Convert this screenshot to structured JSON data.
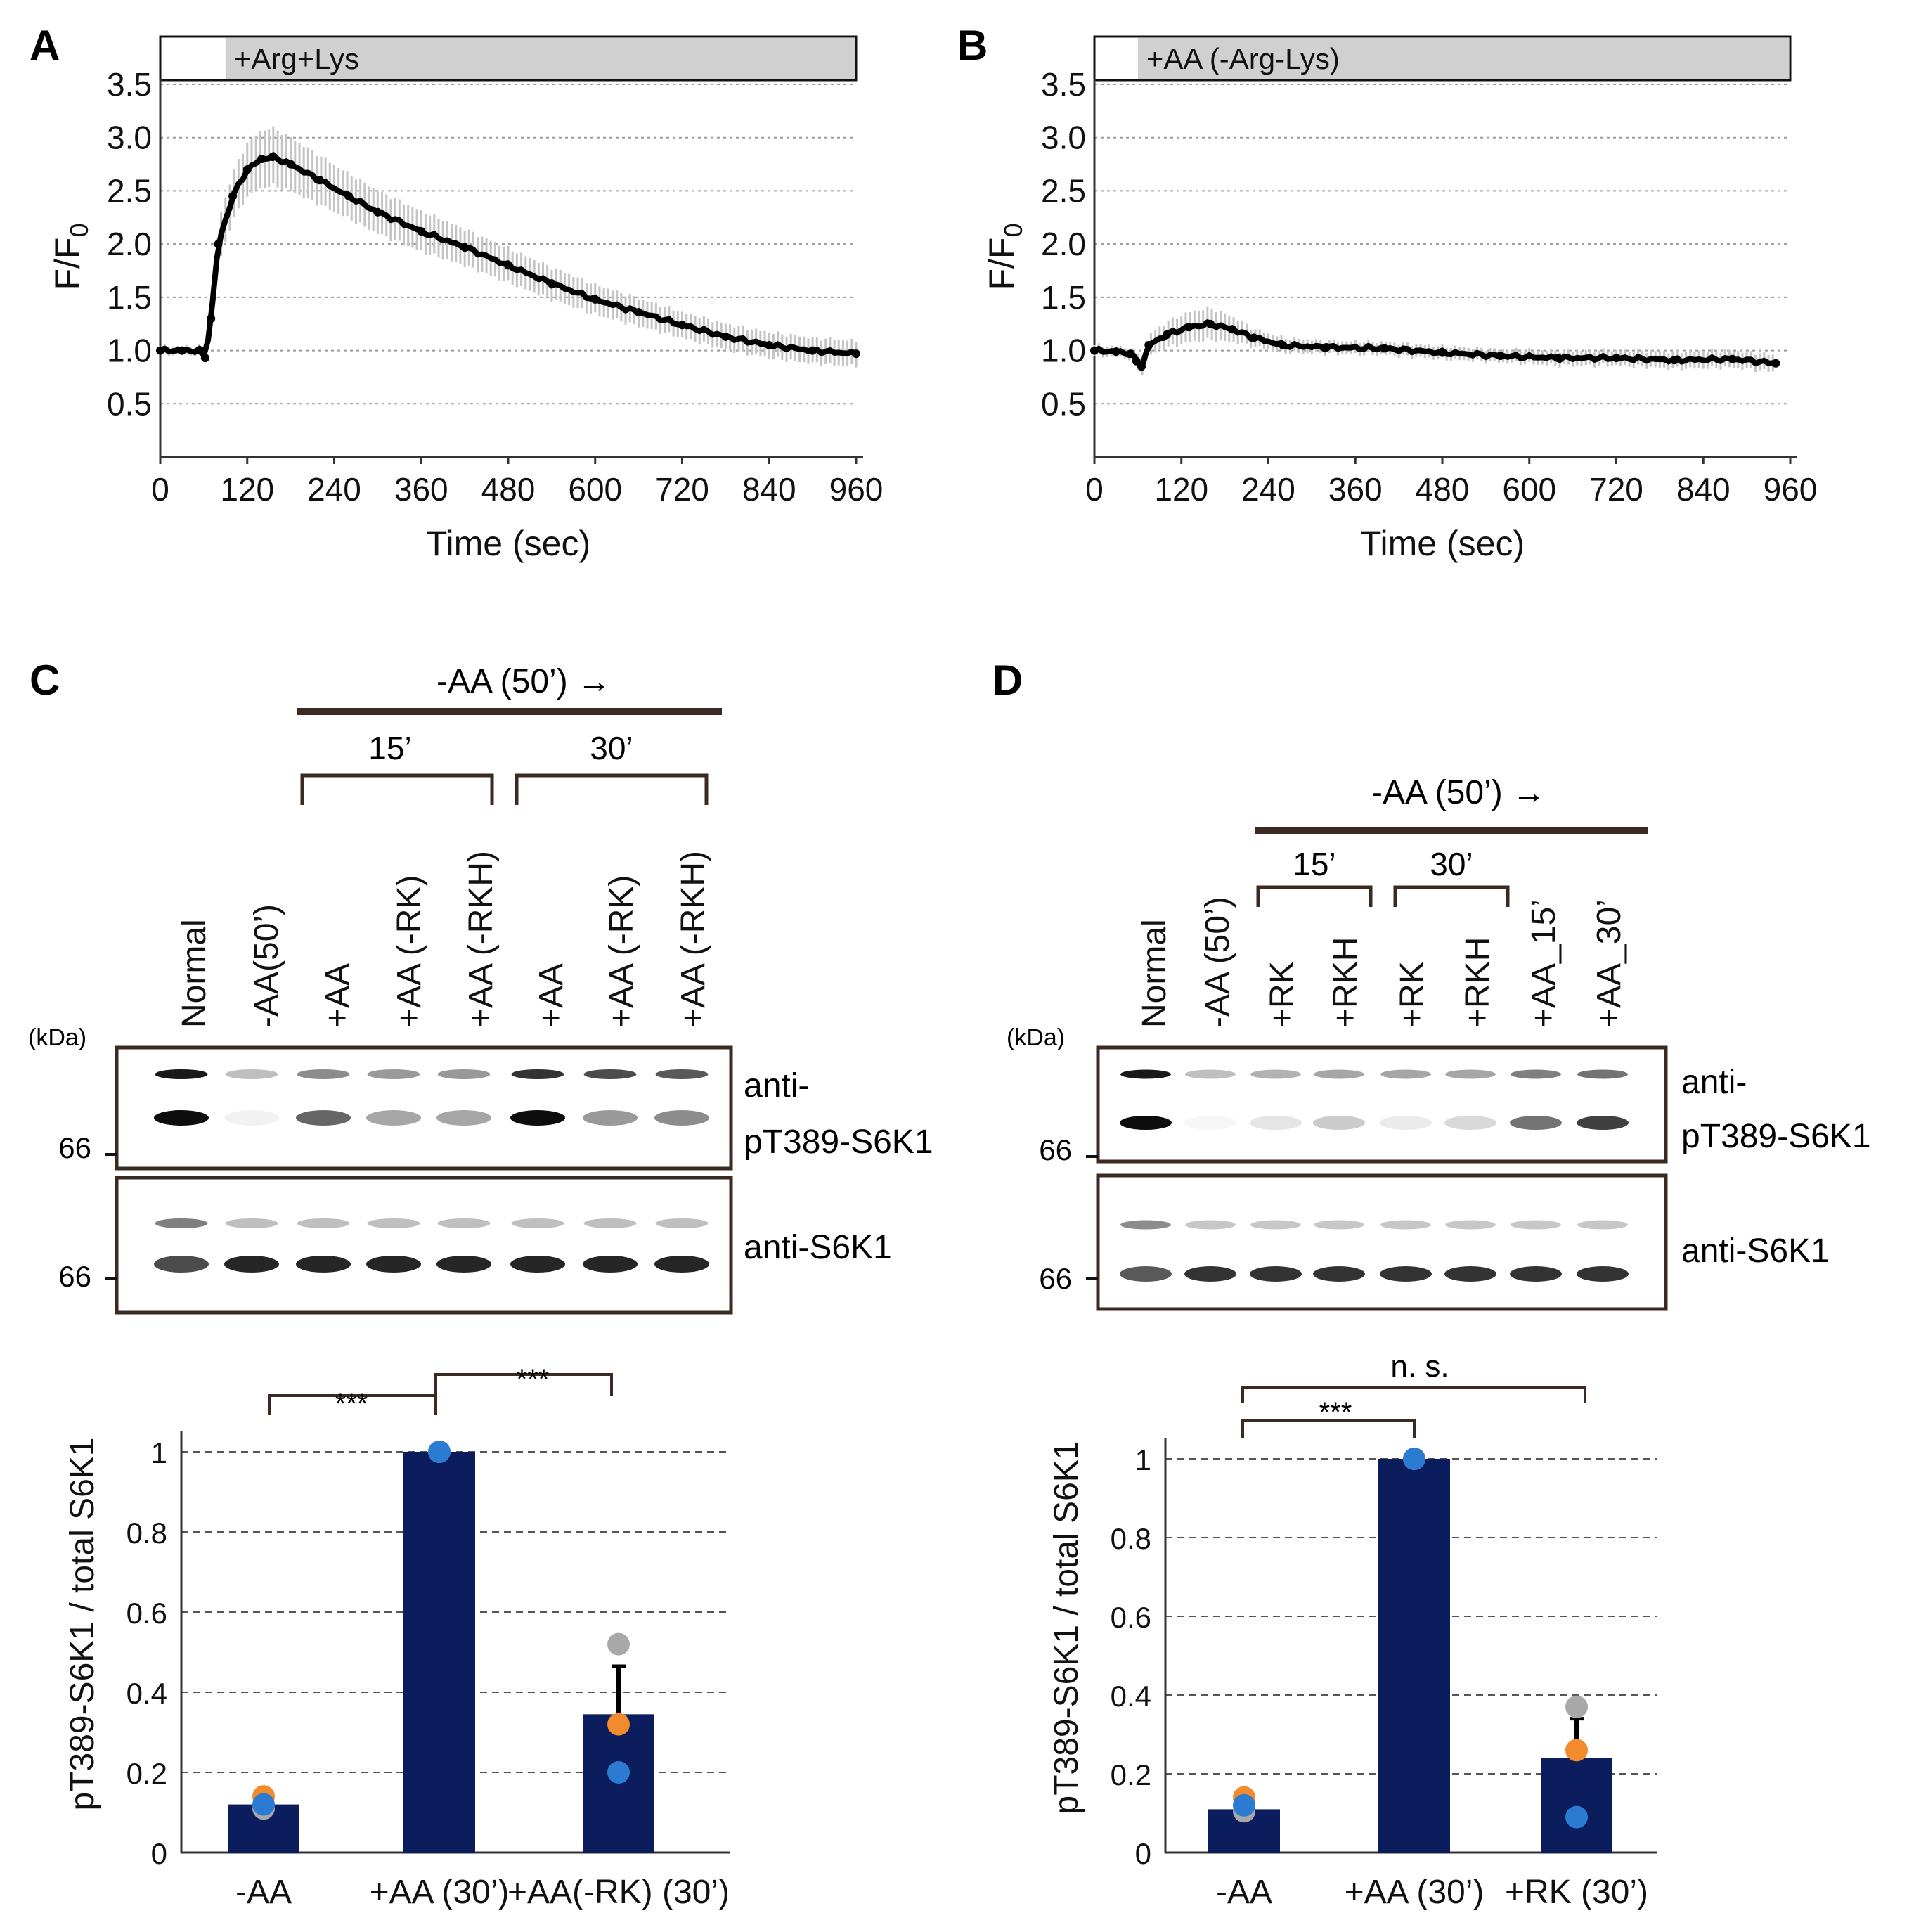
{
  "panels": {
    "A": {
      "letter": "A",
      "treatment_label": "+Arg+Lys",
      "ylabel_main": "F/F",
      "ylabel_sub": "0"
    },
    "B": {
      "letter": "B",
      "treatment_label": "+AA (-Arg-Lys)",
      "ylabel_main": "F/F",
      "ylabel_sub": "0"
    },
    "C": {
      "letter": "C",
      "header": "-AA (50’) →",
      "groups": [
        "15’",
        "30’"
      ],
      "lanes": [
        "Normal",
        "-AA(50’)",
        "+AA",
        "+AA (-RK)",
        "+AA (-RKH)",
        "+AA",
        "+AA (-RK)",
        "+AA (-RKH)"
      ],
      "kda_label": "(kDa)",
      "blots": [
        {
          "label_line1": "anti-",
          "label_line2": "pT389-S6K1",
          "marker": "66"
        },
        {
          "label_line1": "anti-S6K1",
          "label_line2": "",
          "marker": "66"
        }
      ],
      "sig_labels": [
        "***",
        "***"
      ]
    },
    "D": {
      "letter": "D",
      "header": "-AA (50’) →",
      "groups": [
        "15’",
        "30’"
      ],
      "lanes": [
        "Normal",
        "-AA (50’)",
        "+RK",
        "+RKH",
        "+RK",
        "+RKH",
        "+AA_15’",
        "+AA_30’"
      ],
      "kda_label": "(kDa)",
      "blots": [
        {
          "label_line1": "anti-",
          "label_line2": "pT389-S6K1",
          "marker": "66"
        },
        {
          "label_line1": "anti-S6K1",
          "label_line2": "",
          "marker": "66"
        }
      ],
      "sig_labels": [
        "***",
        "n. s."
      ]
    }
  },
  "colors": {
    "bar": "#0c1d5e",
    "grey_point": "#a8a8a8",
    "orange_point": "#f28a2e",
    "blue_point": "#2a7bd1",
    "treat_bar": "#d0d0d0",
    "blot_frame": "#3b2a22",
    "bracket": "#3b2a22"
  },
  "chart_data": [
    {
      "id": "A",
      "type": "line",
      "title": "",
      "xlabel": "Time (sec)",
      "ylabel": "F/F0",
      "xlim": [
        0,
        960
      ],
      "ylim": [
        0,
        3.5
      ],
      "xticks": [
        0,
        120,
        240,
        360,
        480,
        600,
        720,
        840,
        960
      ],
      "yticks": [
        0.5,
        1.0,
        1.5,
        2.0,
        2.5,
        3.0,
        3.5
      ],
      "ytick_labels": [
        "0.5",
        "1.0",
        "1.5",
        "2.0",
        "2.5",
        "3.0",
        "3.5"
      ],
      "grid": true,
      "treatment_start": 90,
      "series": [
        {
          "name": "mean",
          "x": [
            0,
            30,
            55,
            62,
            70,
            80,
            100,
            120,
            140,
            155,
            180,
            220,
            260,
            300,
            360,
            420,
            480,
            540,
            600,
            660,
            720,
            780,
            840,
            900,
            960
          ],
          "y": [
            1.0,
            1.0,
            1.0,
            0.93,
            1.3,
            2.0,
            2.45,
            2.7,
            2.8,
            2.82,
            2.75,
            2.6,
            2.45,
            2.3,
            2.12,
            1.97,
            1.8,
            1.63,
            1.48,
            1.36,
            1.24,
            1.13,
            1.05,
            1.0,
            0.97
          ],
          "err": [
            0.04,
            0.04,
            0.04,
            0.05,
            0.15,
            0.2,
            0.22,
            0.25,
            0.27,
            0.27,
            0.25,
            0.23,
            0.21,
            0.2,
            0.19,
            0.17,
            0.16,
            0.15,
            0.14,
            0.13,
            0.12,
            0.12,
            0.12,
            0.12,
            0.12
          ]
        }
      ]
    },
    {
      "id": "B",
      "type": "line",
      "title": "",
      "xlabel": "Time (sec)",
      "ylabel": "F/F0",
      "xlim": [
        0,
        960
      ],
      "ylim": [
        0,
        3.5
      ],
      "xticks": [
        0,
        120,
        240,
        360,
        480,
        600,
        720,
        840,
        960
      ],
      "yticks": [
        0.5,
        1.0,
        1.5,
        2.0,
        2.5,
        3.0,
        3.5
      ],
      "ytick_labels": [
        "0.5",
        "1.0",
        "1.5",
        "2.0",
        "2.5",
        "3.0",
        "3.5"
      ],
      "grid": true,
      "treatment_start": 60,
      "series": [
        {
          "name": "mean",
          "x": [
            0,
            30,
            50,
            58,
            65,
            75,
            100,
            130,
            160,
            190,
            220,
            260,
            320,
            400,
            480,
            560,
            640,
            720,
            800,
            880,
            940
          ],
          "y": [
            1.0,
            0.99,
            0.97,
            0.9,
            0.85,
            1.05,
            1.15,
            1.22,
            1.25,
            1.2,
            1.12,
            1.05,
            1.03,
            1.02,
            0.98,
            0.95,
            0.93,
            0.93,
            0.91,
            0.92,
            0.88
          ],
          "err": [
            0.05,
            0.05,
            0.05,
            0.07,
            0.08,
            0.1,
            0.12,
            0.14,
            0.15,
            0.12,
            0.08,
            0.07,
            0.06,
            0.06,
            0.06,
            0.06,
            0.07,
            0.07,
            0.08,
            0.08,
            0.08
          ]
        }
      ]
    },
    {
      "id": "C",
      "type": "bar",
      "title": "",
      "xlabel": "",
      "ylabel": "pT389-S6K1 / total S6K1",
      "ylim": [
        0,
        1
      ],
      "yticks": [
        0,
        0.2,
        0.4,
        0.6,
        0.8,
        1
      ],
      "ytick_labels": [
        "0",
        "0.2",
        "0.4",
        "0.6",
        "0.8",
        "1"
      ],
      "grid": true,
      "categories": [
        "-AA",
        "+AA (30’)",
        "+AA(-RK) (30’)"
      ],
      "values": [
        0.12,
        1.0,
        0.345
      ],
      "errors": [
        0.0,
        0.0,
        0.12
      ],
      "points": [
        [
          0.11,
          0.14,
          0.12
        ],
        [
          1.0,
          1.0,
          1.0
        ],
        [
          0.52,
          0.32,
          0.2
        ]
      ]
    },
    {
      "id": "D",
      "type": "bar",
      "title": "",
      "xlabel": "",
      "ylabel": "pT389-S6K1 / total S6K1",
      "ylim": [
        0,
        1
      ],
      "yticks": [
        0,
        0.2,
        0.4,
        0.6,
        0.8,
        1
      ],
      "ytick_labels": [
        "0",
        "0.2",
        "0.4",
        "0.6",
        "0.8",
        "1"
      ],
      "grid": true,
      "categories": [
        "-AA",
        "+AA (30’)",
        "+RK (30’)"
      ],
      "values": [
        0.11,
        1.0,
        0.24
      ],
      "errors": [
        0.0,
        0.0,
        0.1
      ],
      "points": [
        [
          0.105,
          0.14,
          0.12
        ],
        [
          1.0,
          1.0,
          1.0
        ],
        [
          0.37,
          0.26,
          0.09
        ]
      ]
    }
  ]
}
